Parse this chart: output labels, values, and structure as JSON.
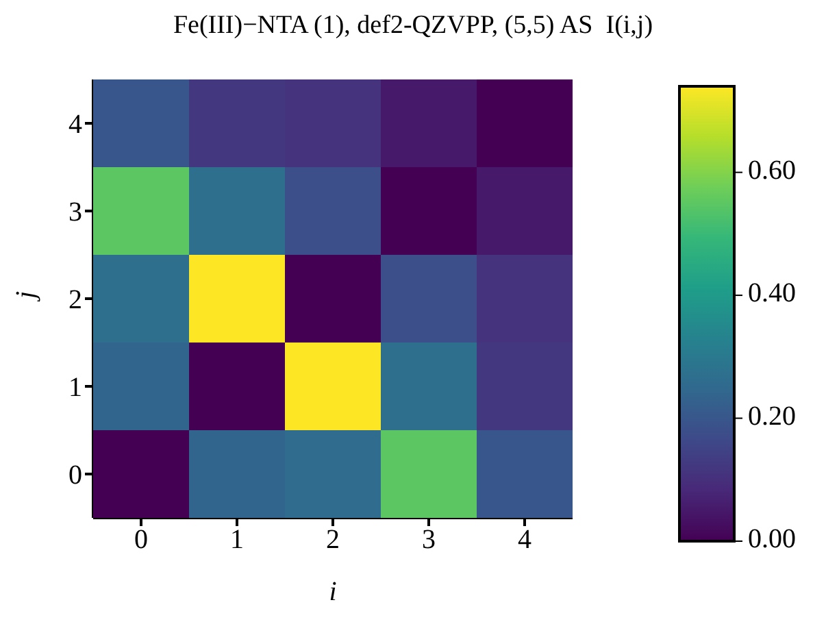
{
  "chart_data": {
    "type": "heatmap",
    "title": "Fe(III)−NTA (1), def2-QZVPP, (5,5) AS  I(i,j)",
    "xlabel": "i",
    "ylabel": "j",
    "categories": [
      "0",
      "1",
      "2",
      "3",
      "4"
    ],
    "y_categories": [
      "4",
      "3",
      "2",
      "1",
      "0"
    ],
    "cells": [
      [
        0.2,
        0.12,
        0.11,
        0.05,
        0.0
      ],
      [
        0.55,
        0.27,
        0.18,
        0.0,
        0.05
      ],
      [
        0.27,
        0.74,
        0.0,
        0.18,
        0.11
      ],
      [
        0.24,
        0.0,
        0.74,
        0.27,
        0.12
      ],
      [
        0.0,
        0.24,
        0.26,
        0.55,
        0.2
      ]
    ],
    "clim": [
      0,
      0.74
    ],
    "cticks": [
      {
        "value": 0,
        "label": "0.00"
      },
      {
        "value": 0.2,
        "label": "0.20"
      },
      {
        "value": 0.4,
        "label": "0.40"
      },
      {
        "value": 0.6,
        "label": "0.60"
      }
    ]
  }
}
